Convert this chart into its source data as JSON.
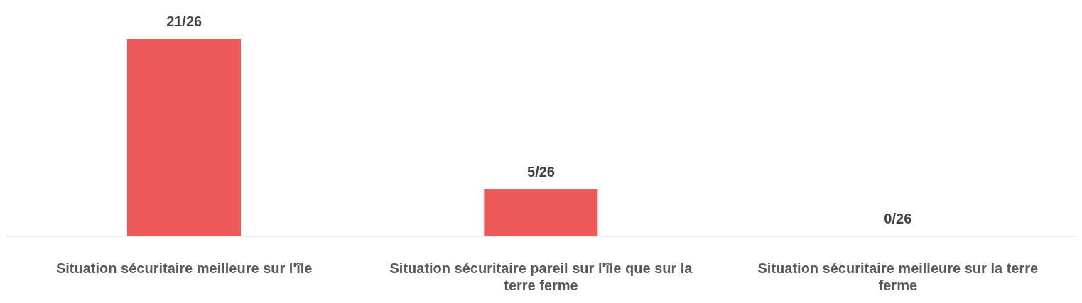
{
  "chart_data": {
    "type": "bar",
    "categories": [
      "Situation sécuritaire meilleure sur l'île",
      "Situation sécuritaire pareil sur l'île que sur la terre ferme",
      "Situation sécuritaire meilleure sur la terre ferme"
    ],
    "values": [
      21,
      5,
      0
    ],
    "value_labels": [
      "21/26",
      "5/26",
      "0/26"
    ],
    "color": "#ee5a5a"
  }
}
